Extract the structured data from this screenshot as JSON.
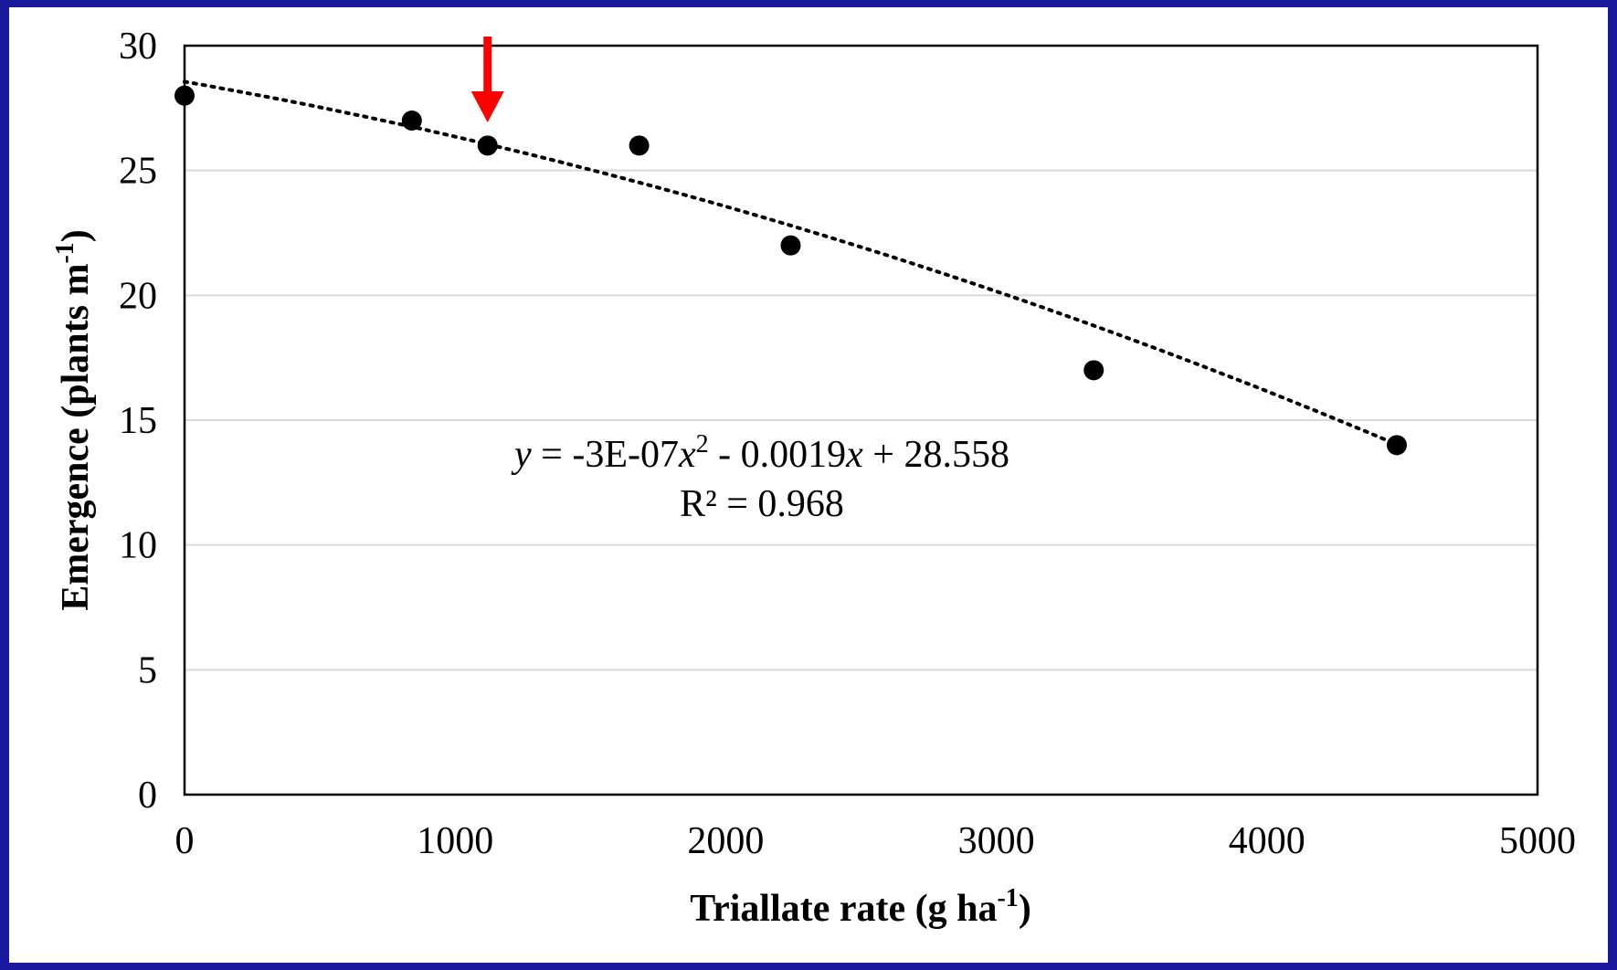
{
  "chart_data": {
    "type": "scatter",
    "xlabel": "Triallate rate (g ha",
    "xlabel_sup": "-1",
    "xlabel_end": ")",
    "ylabel": "Emergence (plants m",
    "ylabel_sup": "-1",
    "ylabel_end": ")",
    "xlim": [
      0,
      5000
    ],
    "ylim": [
      0,
      30
    ],
    "x_ticks": [
      0,
      1000,
      2000,
      3000,
      4000,
      5000
    ],
    "y_ticks": [
      0,
      5,
      10,
      15,
      20,
      25,
      30
    ],
    "grid": "horizontal",
    "points": [
      {
        "x": 0,
        "y": 28
      },
      {
        "x": 840,
        "y": 27
      },
      {
        "x": 1120,
        "y": 26
      },
      {
        "x": 1680,
        "y": 26
      },
      {
        "x": 2240,
        "y": 22
      },
      {
        "x": 3360,
        "y": 17
      },
      {
        "x": 4480,
        "y": 14
      }
    ],
    "trendline": {
      "type": "polynomial",
      "coefficients": {
        "a": -3e-07,
        "b": -0.0019,
        "c": 28.558
      },
      "x_range": [
        0,
        4480
      ],
      "style": "dotted"
    },
    "equation": {
      "y": "y",
      "part1": " = -3E-07",
      "x": "x",
      "sup": "2",
      "part2": " - 0.0019",
      "x2": "x",
      "part3": " + 28.558"
    },
    "r_squared_text": "R² = 0.968",
    "highlight_arrow": {
      "x": 1120,
      "color": "#ff0000"
    },
    "colors": {
      "background": "#1a1a9e",
      "points": "#000000",
      "grid": "#d9d9d9",
      "arrow": "#ff0000"
    }
  }
}
